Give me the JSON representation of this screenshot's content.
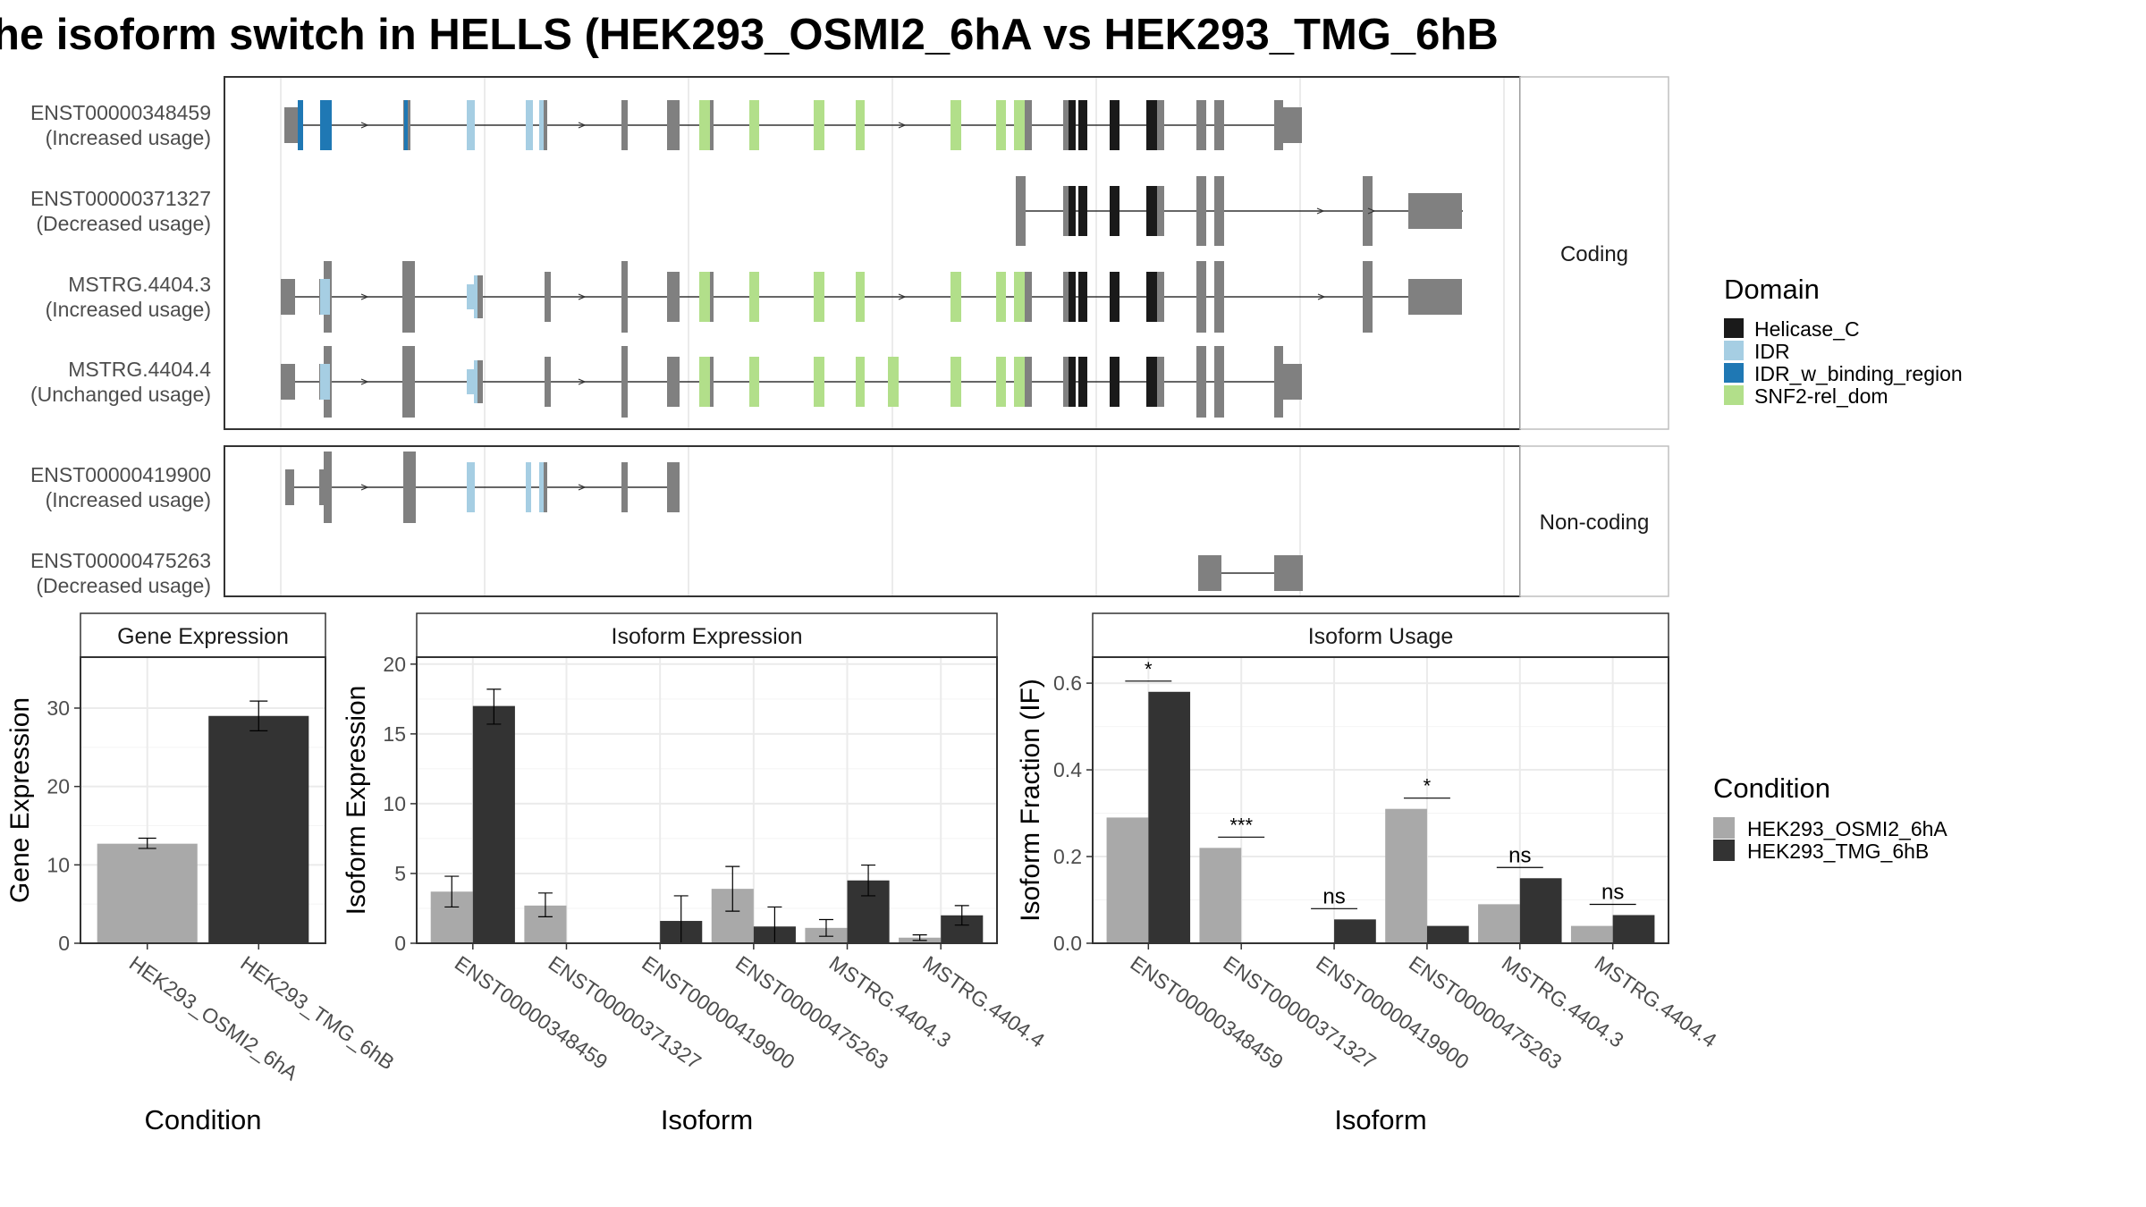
{
  "title": "he isoform switch in HELLS (HEK293_OSMI2_6hA vs HEK293_TMG_6hB",
  "colors": {
    "exon": "#808080",
    "cond_a": "#A9A9A9",
    "cond_b": "#333333",
    "domains": {
      "Helicase_C": "#1a1a1a",
      "IDR": "#A6CEE3",
      "IDR_w_binding_region": "#1F78B4",
      "SNF2-rel_dom": "#B2DF8A"
    }
  },
  "structure": {
    "strips": [
      "Coding",
      "Non-coding"
    ],
    "transcripts": [
      {
        "id": "ENST00000348459",
        "usage": "(Increased usage)",
        "group": "Coding"
      },
      {
        "id": "ENST00000371327",
        "usage": "(Decreased usage)",
        "group": "Coding"
      },
      {
        "id": "MSTRG.4404.3",
        "usage": "(Increased usage)",
        "group": "Coding"
      },
      {
        "id": "MSTRG.4404.4",
        "usage": "(Unchanged usage)",
        "group": "Coding"
      },
      {
        "id": "ENST00000419900",
        "usage": "(Increased usage)",
        "group": "Non-coding"
      },
      {
        "id": "ENST00000475263",
        "usage": "(Decreased usage)",
        "group": "Non-coding"
      }
    ]
  },
  "domain_legend": {
    "title": "Domain",
    "items": [
      "Helicase_C",
      "IDR",
      "IDR_w_binding_region",
      "SNF2-rel_dom"
    ]
  },
  "condition_legend": {
    "title": "Condition",
    "items": [
      "HEK293_OSMI2_6hA",
      "HEK293_TMG_6hB"
    ]
  },
  "chart_data": [
    {
      "type": "bar",
      "title": "Gene Expression",
      "xlabel": "Condition",
      "ylabel": "Gene Expression",
      "ylim": [
        0,
        36.5
      ],
      "yticks": [
        0,
        10,
        20,
        30
      ],
      "categories": [
        "HEK293_OSMI2_6hA",
        "HEK293_TMG_6hB"
      ],
      "values": [
        12.7,
        29.0
      ],
      "errors": [
        [
          12.1,
          13.4
        ],
        [
          27.1,
          30.9
        ]
      ]
    },
    {
      "type": "bar",
      "title": "Isoform Expression",
      "xlabel": "Isoform",
      "ylabel": "Isoform Expression",
      "ylim": [
        0,
        20.5
      ],
      "yticks": [
        0,
        5,
        10,
        15,
        20
      ],
      "categories": [
        "ENST00000348459",
        "ENST00000371327",
        "ENST00000419900",
        "ENST00000475263",
        "MSTRG.4404.3",
        "MSTRG.4404.4"
      ],
      "series": [
        {
          "name": "HEK293_OSMI2_6hA",
          "values": [
            3.7,
            2.7,
            0,
            3.9,
            1.1,
            0.4
          ],
          "errors": [
            [
              2.6,
              4.8
            ],
            [
              1.9,
              3.6
            ],
            [
              0,
              0
            ],
            [
              2.3,
              5.5
            ],
            [
              0.5,
              1.7
            ],
            [
              0.2,
              0.6
            ]
          ]
        },
        {
          "name": "HEK293_TMG_6hB",
          "values": [
            17.0,
            0,
            1.6,
            1.2,
            4.5,
            2.0
          ],
          "errors": [
            [
              15.7,
              18.2
            ],
            [
              0,
              0
            ],
            [
              0,
              3.4
            ],
            [
              0,
              2.6
            ],
            [
              3.4,
              5.6
            ],
            [
              1.3,
              2.7
            ]
          ]
        }
      ]
    },
    {
      "type": "bar",
      "title": "Isoform Usage",
      "xlabel": "Isoform",
      "ylabel": "Isoform Fraction (IF)",
      "ylim": [
        0,
        0.66
      ],
      "yticks": [
        0.0,
        0.2,
        0.4,
        0.6
      ],
      "ytick_labels": [
        "0.0",
        "0.2",
        "0.4",
        "0.6"
      ],
      "categories": [
        "ENST00000348459",
        "ENST00000371327",
        "ENST00000419900",
        "ENST00000475263",
        "MSTRG.4404.3",
        "MSTRG.4404.4"
      ],
      "series": [
        {
          "name": "HEK293_OSMI2_6hA",
          "values": [
            0.29,
            0.22,
            0,
            0.31,
            0.09,
            0.04
          ]
        },
        {
          "name": "HEK293_TMG_6hB",
          "values": [
            0.58,
            0,
            0.055,
            0.04,
            0.15,
            0.065
          ]
        }
      ],
      "significance": [
        "*",
        "***",
        "ns",
        "*",
        "ns",
        "ns"
      ]
    }
  ]
}
